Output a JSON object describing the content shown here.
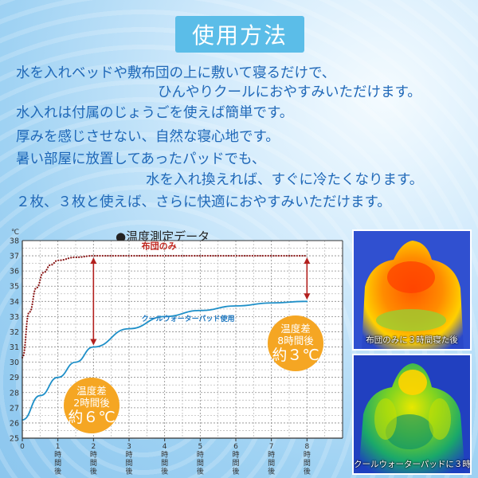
{
  "title": "使用方法",
  "description": [
    "水を入れベッドや敷布団の上に敷いて寝るだけで、",
    "ひんやりクールにおやすみいただけます。",
    "水入れは付属のじょうごを使えば簡単です。",
    "厚みを感じさせない、自然な寝心地です。",
    "暑い部屋に放置してあったパッドでも、",
    "水を入れ換えれば、すぐに冷たくなります。",
    "２枚、３枚と使えば、さらに快適におやすみいただけます。"
  ],
  "chart_title": "●温度測定データ",
  "chart_data": {
    "type": "line",
    "unit_label": "℃",
    "ylim": [
      25,
      38
    ],
    "xlim": [
      0,
      9
    ],
    "y_ticks": [
      "25",
      "26",
      "27",
      "28",
      "29",
      "30",
      "31",
      "32",
      "33",
      "34",
      "35",
      "36",
      "37",
      "38"
    ],
    "x_ticks": [
      {
        "value": 0,
        "label": "0"
      },
      {
        "value": 1,
        "label": "1時間後"
      },
      {
        "value": 2,
        "label": "2時間後"
      },
      {
        "value": 3,
        "label": "3時間後"
      },
      {
        "value": 4,
        "label": "4時間後"
      },
      {
        "value": 5,
        "label": "5時間後"
      },
      {
        "value": 6,
        "label": "6時間後"
      },
      {
        "value": 7,
        "label": "7時間後"
      },
      {
        "value": 8,
        "label": "8時間後"
      }
    ],
    "grid": true,
    "series": [
      {
        "name": "布団のみ",
        "color": "#8b1a1a",
        "style": "dotted",
        "x": [
          0,
          0.2,
          0.4,
          0.6,
          0.8,
          1,
          1.5,
          2,
          3,
          4,
          5,
          6,
          7,
          8
        ],
        "y": [
          30.3,
          33.3,
          34.9,
          35.9,
          36.4,
          36.7,
          36.9,
          37.0,
          37.0,
          37.0,
          37.0,
          37.0,
          37.0,
          37.0
        ]
      },
      {
        "name": "クールウォーターパッド使用",
        "color": "#1e8fc8",
        "style": "solid",
        "x": [
          0,
          0.5,
          1,
          1.5,
          2,
          3,
          4,
          5,
          6,
          7,
          8
        ],
        "y": [
          26.2,
          27.8,
          29.0,
          30.0,
          31.0,
          32.2,
          33.0,
          33.4,
          33.7,
          33.9,
          34.0
        ]
      }
    ],
    "annotations": [
      {
        "x": 2,
        "y_from": 31.0,
        "y_to": 37.0,
        "lines": [
          "温度差",
          "2時間後",
          "約６℃"
        ]
      },
      {
        "x": 8,
        "y_from": 34.0,
        "y_to": 37.0,
        "lines": [
          "温度差",
          "8時間後",
          "約３℃"
        ]
      }
    ]
  },
  "thermal_images": [
    {
      "caption": "布団のみに３時間寝た後"
    },
    {
      "caption": "クールウォーターパッドに３時間寝た後"
    }
  ],
  "colors": {
    "accent": "#5bbde8",
    "text_blue": "#1f68b8",
    "badge": "#f5a623",
    "arrow": "#b3201e"
  }
}
